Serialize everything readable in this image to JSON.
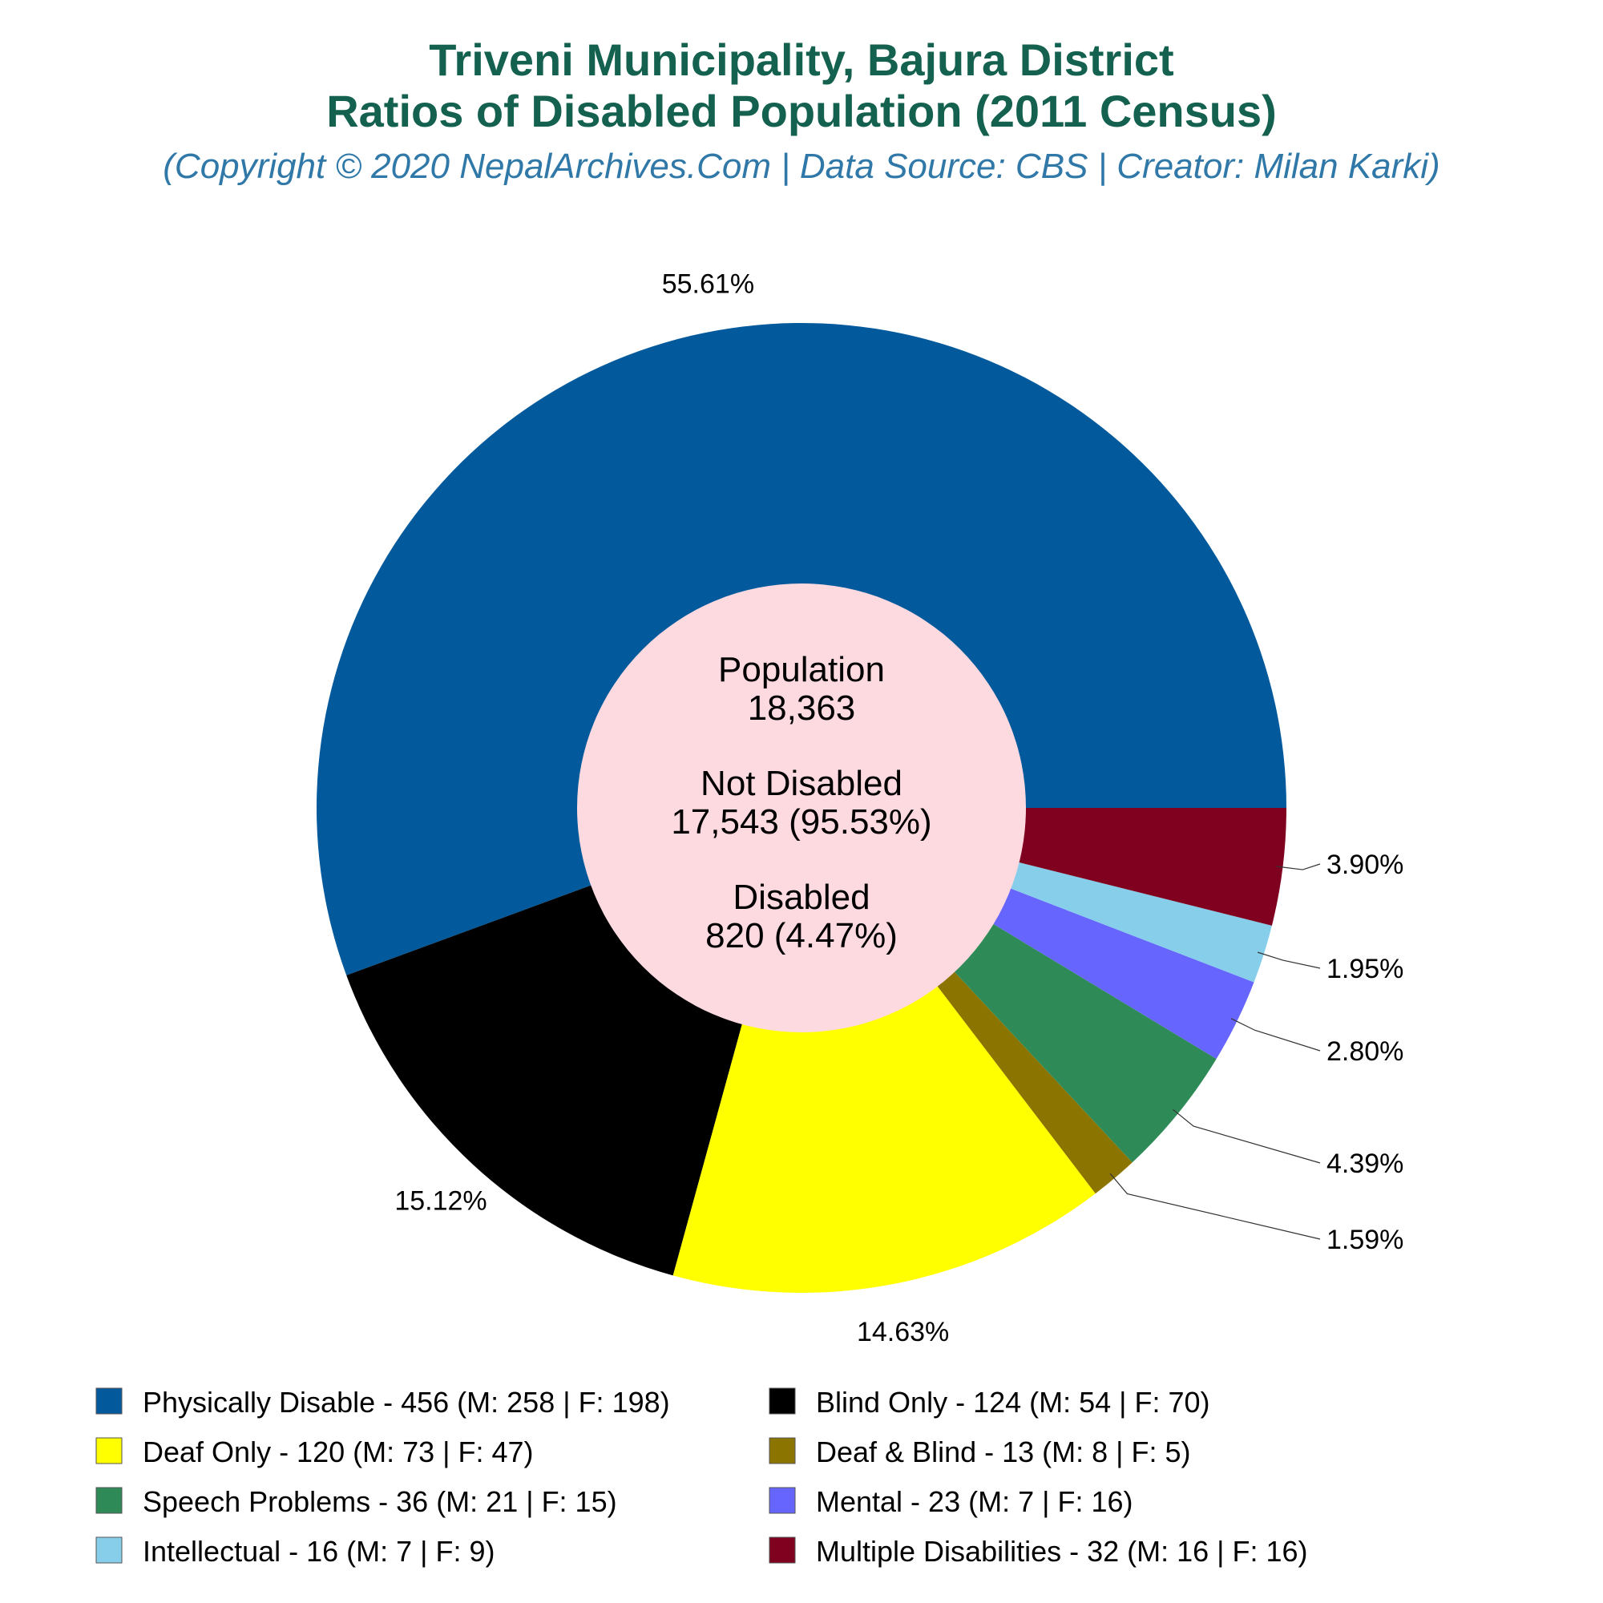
{
  "chart_data": {
    "type": "pie",
    "title_line1": "Triveni Municipality, Bajura District",
    "title_line2": "Ratios of Disabled Population (2011 Census)",
    "subtitle": "(Copyright © 2020 NepalArchives.Com | Data Source: CBS | Creator: Milan Karki)",
    "center": {
      "population_label": "Population",
      "population_value": "18,363",
      "not_disabled_label": "Not Disabled",
      "not_disabled_value": "17,543 (95.53%)",
      "disabled_label": "Disabled",
      "disabled_value": "820 (4.47%)",
      "fill": "#fdd9e0"
    },
    "slices": [
      {
        "category": "Physically Disable",
        "value": 456,
        "male": 258,
        "female": 198,
        "percent_label": "55.61%",
        "color": "#02599c",
        "legend_label": "Physically Disable - 456 (M: 258 | F: 198)"
      },
      {
        "category": "Blind Only",
        "value": 124,
        "male": 54,
        "female": 70,
        "percent_label": "15.12%",
        "color": "#000000",
        "legend_label": "Blind Only - 124 (M: 54 | F: 70)"
      },
      {
        "category": "Deaf Only",
        "value": 120,
        "male": 73,
        "female": 47,
        "percent_label": "14.63%",
        "color": "#ffff00",
        "legend_label": "Deaf Only - 120 (M: 73 | F: 47)"
      },
      {
        "category": "Deaf & Blind",
        "value": 13,
        "male": 8,
        "female": 5,
        "percent_label": "1.59%",
        "color": "#8b7500",
        "legend_label": "Deaf & Blind - 13 (M: 8 | F: 5)"
      },
      {
        "category": "Speech Problems",
        "value": 36,
        "male": 21,
        "female": 15,
        "percent_label": "4.39%",
        "color": "#2e8b57",
        "legend_label": "Speech Problems - 36 (M: 21 | F: 15)"
      },
      {
        "category": "Mental",
        "value": 23,
        "male": 7,
        "female": 16,
        "percent_label": "2.80%",
        "color": "#6666ff",
        "legend_label": "Mental - 23 (M: 7 | F: 16)"
      },
      {
        "category": "Intellectual",
        "value": 16,
        "male": 7,
        "female": 9,
        "percent_label": "1.95%",
        "color": "#87ceeb",
        "legend_label": "Intellectual - 16 (M: 7 | F: 9)"
      },
      {
        "category": "Multiple Disabilities",
        "value": 32,
        "male": 16,
        "female": 16,
        "percent_label": "3.90%",
        "color": "#800020",
        "legend_label": "Multiple Disabilities - 32 (M: 16 | F: 16)"
      }
    ],
    "legend_placement": "bottom"
  }
}
